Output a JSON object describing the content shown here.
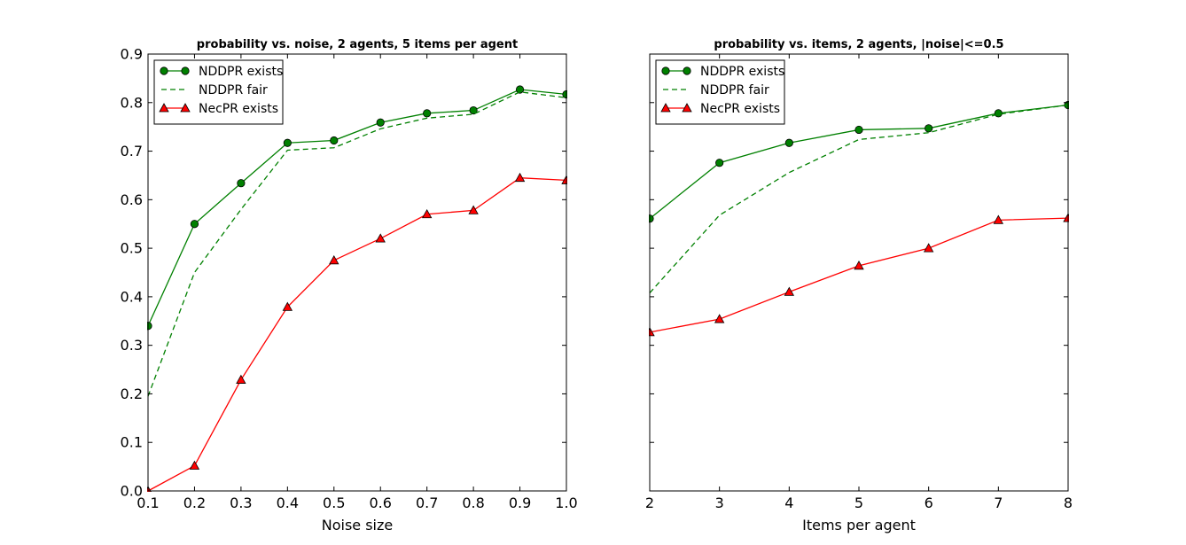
{
  "chart_data": [
    {
      "type": "line",
      "title": "probability vs. noise, 2 agents, 5 items per agent",
      "xlabel": "Noise size",
      "ylabel": "",
      "xlim": [
        0.1,
        1.0
      ],
      "ylim": [
        0.0,
        0.9
      ],
      "xticks": [
        "0.1",
        "0.2",
        "0.3",
        "0.4",
        "0.5",
        "0.6",
        "0.7",
        "0.8",
        "0.9",
        "1.0"
      ],
      "yticks": [
        "0.0",
        "0.1",
        "0.2",
        "0.3",
        "0.4",
        "0.5",
        "0.6",
        "0.7",
        "0.8",
        "0.9"
      ],
      "show_y_tick_labels": true,
      "grid": false,
      "legend_position": "top-left",
      "x": [
        0.1,
        0.2,
        0.3,
        0.4,
        0.5,
        0.6,
        0.7,
        0.8,
        0.9,
        1.0
      ],
      "series": [
        {
          "name": "NDDPR exists",
          "color": "#008000",
          "style": "solid",
          "marker": "circle",
          "values": [
            0.34,
            0.55,
            0.634,
            0.717,
            0.722,
            0.759,
            0.778,
            0.784,
            0.827,
            0.817
          ]
        },
        {
          "name": "NDDPR fair",
          "color": "#008000",
          "style": "dashed",
          "marker": "none",
          "values": [
            0.195,
            0.45,
            0.58,
            0.702,
            0.707,
            0.746,
            0.768,
            0.776,
            0.822,
            0.81
          ]
        },
        {
          "name": "NecPR exists",
          "color": "#ff0000",
          "style": "solid",
          "marker": "triangle",
          "values": [
            0.0,
            0.052,
            0.229,
            0.379,
            0.475,
            0.52,
            0.57,
            0.578,
            0.645,
            0.64
          ]
        }
      ]
    },
    {
      "type": "line",
      "title": "probability vs. items, 2 agents, |noise|<=0.5",
      "xlabel": "Items per agent",
      "ylabel": "",
      "xlim": [
        2,
        8
      ],
      "ylim": [
        0.0,
        0.9
      ],
      "xticks": [
        "2",
        "3",
        "4",
        "5",
        "6",
        "7",
        "8"
      ],
      "yticks": [
        "0.0",
        "0.1",
        "0.2",
        "0.3",
        "0.4",
        "0.5",
        "0.6",
        "0.7",
        "0.8",
        "0.9"
      ],
      "show_y_tick_labels": false,
      "grid": false,
      "legend_position": "top-left",
      "x": [
        2,
        3,
        4,
        5,
        6,
        7,
        8
      ],
      "series": [
        {
          "name": "NDDPR exists",
          "color": "#008000",
          "style": "solid",
          "marker": "circle",
          "values": [
            0.561,
            0.676,
            0.717,
            0.744,
            0.747,
            0.778,
            0.795
          ]
        },
        {
          "name": "NDDPR fair",
          "color": "#008000",
          "style": "dashed",
          "marker": "none",
          "values": [
            0.408,
            0.568,
            0.656,
            0.724,
            0.738,
            0.776,
            0.795
          ]
        },
        {
          "name": "NecPR exists",
          "color": "#ff0000",
          "style": "solid",
          "marker": "triangle",
          "values": [
            0.327,
            0.354,
            0.41,
            0.464,
            0.5,
            0.558,
            0.562
          ]
        }
      ]
    }
  ]
}
